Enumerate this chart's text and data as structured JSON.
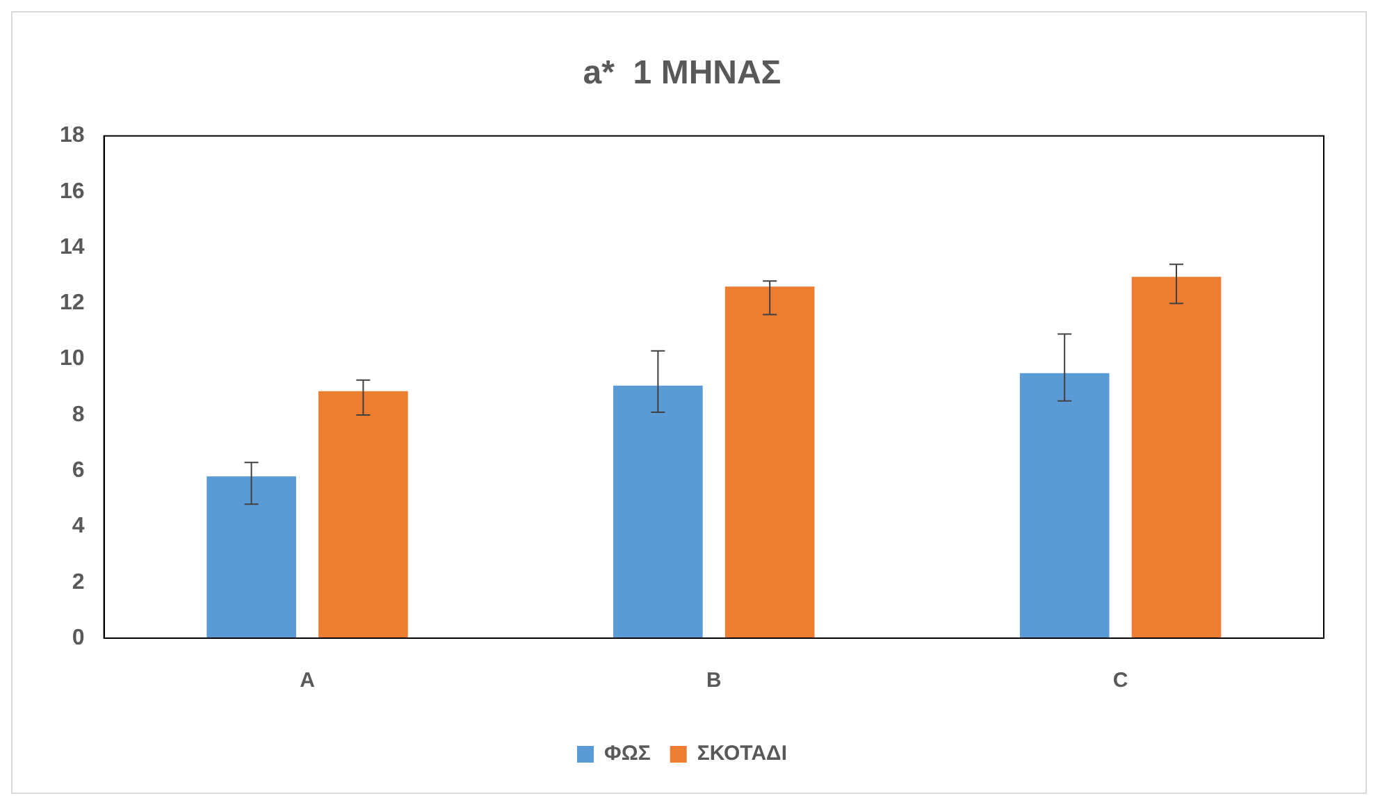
{
  "chart_data": {
    "type": "bar",
    "title": "a*  1 ΜΗΝΑΣ",
    "categories": [
      "A",
      "B",
      "C"
    ],
    "series": [
      {
        "name": "ΦΩΣ",
        "color": "#5b9bd5",
        "values": [
          5.8,
          9.05,
          9.5
        ],
        "errors": [
          [
            4.8,
            6.3
          ],
          [
            8.1,
            10.3
          ],
          [
            8.5,
            10.9
          ]
        ]
      },
      {
        "name": "ΣΚΟΤΑΔΙ",
        "color": "#ed7d31",
        "values": [
          8.85,
          12.6,
          12.95
        ],
        "errors": [
          [
            8.0,
            9.25
          ],
          [
            11.6,
            12.8
          ],
          [
            12.0,
            13.4
          ]
        ]
      }
    ],
    "ylim": [
      0,
      18
    ],
    "yticks": [
      0,
      2,
      4,
      6,
      8,
      10,
      12,
      14,
      16,
      18
    ],
    "grid": false,
    "legend": "bottom"
  }
}
